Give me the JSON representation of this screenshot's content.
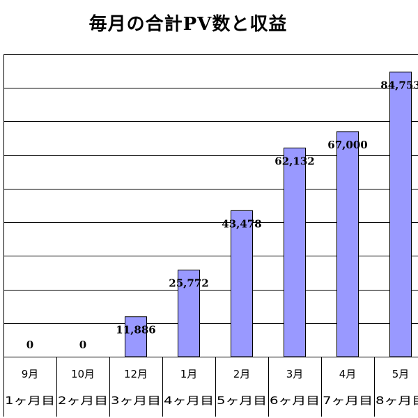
{
  "chart_data": {
    "type": "bar",
    "title": "毎月の合計PV数と収益",
    "categories": [
      "9月",
      "10月",
      "12月",
      "1月",
      "2月",
      "3月",
      "4月",
      "5月"
    ],
    "sub_categories": [
      "1ヶ月目",
      "2ヶ月目",
      "3ヶ月目",
      "4ヶ月目",
      "5ヶ月目",
      "6ヶ月目",
      "7ヶ月目",
      "8ヶ月目"
    ],
    "values": [
      0,
      0,
      11886,
      25772,
      43478,
      62132,
      67000,
      84753
    ],
    "value_labels": [
      "0",
      "0",
      "11,886",
      "25,772",
      "43,478",
      "62,132",
      "67,000",
      "84,753"
    ],
    "ylim": [
      0,
      90000
    ],
    "grid": true,
    "xlabel": "",
    "ylabel": "",
    "colors": {
      "bar_fill": "#9999ff",
      "bar_stroke": "#000000",
      "grid": "#000000"
    }
  }
}
